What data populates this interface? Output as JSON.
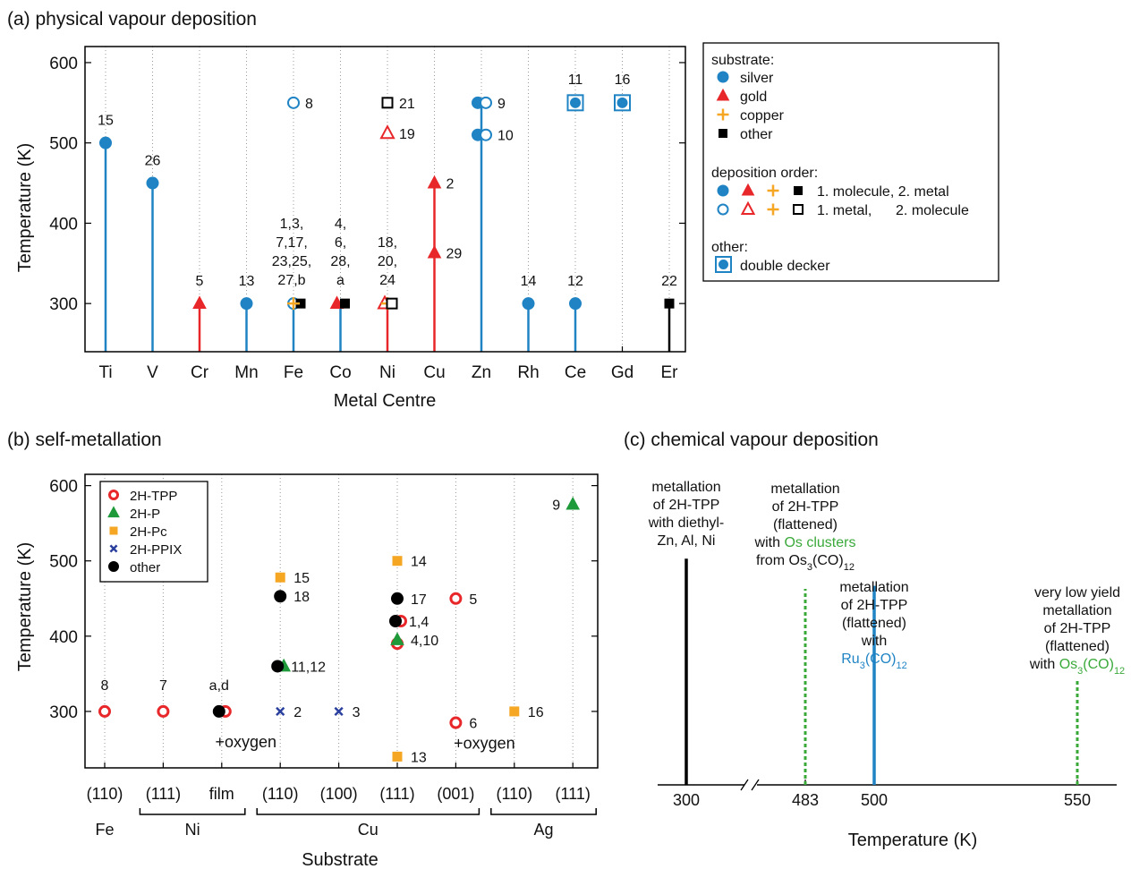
{
  "colors": {
    "silver": "#1f83c4",
    "gold": "#e8272a",
    "copper": "#f5a623",
    "other": "#000000",
    "pc": "#f5a623",
    "p": "#1f9a3a",
    "ppix": "#2b3f9e",
    "cvd_black": "#000000",
    "cvd_green": "#3aa93a",
    "cvd_blue": "#1f83c4",
    "axis": "#000000"
  },
  "chart_data": [
    {
      "panel": "a",
      "type": "scatter",
      "title": "(a) physical vapour deposition",
      "xlabel": "Metal Centre",
      "ylabel": "Temperature (K)",
      "ylim": [
        240,
        620
      ],
      "yticks": [
        300,
        400,
        500,
        600
      ],
      "categories": [
        "Ti",
        "V",
        "Cr",
        "Mn",
        "Fe",
        "Co",
        "Ni",
        "Cu",
        "Zn",
        "Rh",
        "Ce",
        "Gd",
        "Er"
      ],
      "grid": "vertical dotted",
      "stems": [
        {
          "cat": "Ti",
          "top": 500,
          "color": "silver"
        },
        {
          "cat": "V",
          "top": 450,
          "color": "silver"
        },
        {
          "cat": "Cr",
          "top": 300,
          "color": "gold"
        },
        {
          "cat": "Mn",
          "top": 300,
          "color": "silver"
        },
        {
          "cat": "Fe",
          "top": 300,
          "color": "silver"
        },
        {
          "cat": "Co",
          "top": 300,
          "color": "silver"
        },
        {
          "cat": "Ni",
          "top": 300,
          "color": "gold"
        },
        {
          "cat": "Cu",
          "top": 450,
          "color": "gold"
        },
        {
          "cat": "Zn",
          "top": 550,
          "color": "silver"
        },
        {
          "cat": "Rh",
          "top": 300,
          "color": "silver"
        },
        {
          "cat": "Ce",
          "top": 300,
          "color": "silver"
        },
        {
          "cat": "Er",
          "top": 300,
          "color": "other"
        }
      ],
      "points": [
        {
          "cat": "Ti",
          "y": 500,
          "marker": "circle",
          "fill": true,
          "substrate": "silver",
          "label": "15",
          "label_pos": "above"
        },
        {
          "cat": "V",
          "y": 450,
          "marker": "circle",
          "fill": true,
          "substrate": "silver",
          "label": "26",
          "label_pos": "above"
        },
        {
          "cat": "Cr",
          "y": 300,
          "marker": "triangle",
          "fill": true,
          "substrate": "gold",
          "label": "5",
          "label_pos": "above"
        },
        {
          "cat": "Mn",
          "y": 300,
          "marker": "circle",
          "fill": true,
          "substrate": "silver",
          "label": "13",
          "label_pos": "above"
        },
        {
          "cat": "Fe",
          "y": 300,
          "marker": "circle",
          "fill": false,
          "substrate": "silver",
          "dx": 0
        },
        {
          "cat": "Fe",
          "y": 300,
          "marker": "square",
          "fill": true,
          "substrate": "other",
          "dx": 8
        },
        {
          "cat": "Fe",
          "y": 300,
          "marker": "plus",
          "fill": true,
          "substrate": "copper",
          "dx": 0
        },
        {
          "cat": "Fe",
          "y": 550,
          "marker": "circle",
          "fill": false,
          "substrate": "silver",
          "label": "8",
          "label_pos": "right"
        },
        {
          "cat": "Co",
          "y": 300,
          "marker": "triangle",
          "fill": true,
          "substrate": "gold",
          "dx": -4
        },
        {
          "cat": "Co",
          "y": 300,
          "marker": "square",
          "fill": true,
          "substrate": "other",
          "dx": 5
        },
        {
          "cat": "Ni",
          "y": 300,
          "marker": "triangle",
          "fill": false,
          "substrate": "gold",
          "dx": -3
        },
        {
          "cat": "Ni",
          "y": 300,
          "marker": "plus",
          "fill": true,
          "substrate": "copper",
          "dx": 0
        },
        {
          "cat": "Ni",
          "y": 300,
          "marker": "square",
          "fill": false,
          "substrate": "other",
          "dx": 5
        },
        {
          "cat": "Ni",
          "y": 512,
          "marker": "triangle",
          "fill": false,
          "substrate": "gold",
          "label": "19",
          "label_pos": "right"
        },
        {
          "cat": "Ni",
          "y": 550,
          "marker": "square",
          "fill": false,
          "substrate": "other",
          "label": "21",
          "label_pos": "right"
        },
        {
          "cat": "Cu",
          "y": 363,
          "marker": "triangle",
          "fill": true,
          "substrate": "gold",
          "label": "29",
          "label_pos": "right"
        },
        {
          "cat": "Cu",
          "y": 450,
          "marker": "triangle",
          "fill": true,
          "substrate": "gold",
          "label": "2",
          "label_pos": "right"
        },
        {
          "cat": "Zn",
          "y": 510,
          "marker": "circle",
          "fill": true,
          "substrate": "silver",
          "dx": -4
        },
        {
          "cat": "Zn",
          "y": 510,
          "marker": "circle",
          "fill": false,
          "substrate": "silver",
          "dx": 5,
          "label": "10",
          "label_pos": "right"
        },
        {
          "cat": "Zn",
          "y": 550,
          "marker": "circle",
          "fill": true,
          "substrate": "silver",
          "dx": -4
        },
        {
          "cat": "Zn",
          "y": 550,
          "marker": "circle",
          "fill": false,
          "substrate": "silver",
          "dx": 5,
          "label": "9",
          "label_pos": "right"
        },
        {
          "cat": "Rh",
          "y": 300,
          "marker": "circle",
          "fill": true,
          "substrate": "silver",
          "label": "14",
          "label_pos": "above"
        },
        {
          "cat": "Ce",
          "y": 300,
          "marker": "circle",
          "fill": true,
          "substrate": "silver",
          "label": "12",
          "label_pos": "above"
        },
        {
          "cat": "Ce",
          "y": 550,
          "marker": "circle",
          "fill": true,
          "substrate": "silver",
          "double_decker": true,
          "label": "11",
          "label_pos": "above2"
        },
        {
          "cat": "Gd",
          "y": 550,
          "marker": "circle",
          "fill": true,
          "substrate": "silver",
          "double_decker": true,
          "label": "16",
          "label_pos": "above2"
        },
        {
          "cat": "Er",
          "y": 300,
          "marker": "square",
          "fill": true,
          "substrate": "other",
          "label": "22",
          "label_pos": "above"
        }
      ],
      "multiline_labels": [
        {
          "cat": "Fe",
          "lines": [
            "1,3,",
            "7,17,",
            "23,25,",
            "27,b"
          ]
        },
        {
          "cat": "Co",
          "lines": [
            "4,",
            "6,",
            "28,",
            "a"
          ]
        },
        {
          "cat": "Ni",
          "lines": [
            "18,",
            "20,",
            "24"
          ]
        }
      ],
      "legend": {
        "placement": "right",
        "substrate_title": "substrate:",
        "substrate_items": [
          {
            "label": "silver",
            "marker": "circle",
            "color": "silver"
          },
          {
            "label": "gold",
            "marker": "triangle",
            "color": "gold"
          },
          {
            "label": "copper",
            "marker": "plus",
            "color": "copper"
          },
          {
            "label": "other",
            "marker": "square",
            "color": "other"
          }
        ],
        "order_title": "deposition order:",
        "order_filled": "1. molecule, 2. metal",
        "order_open": "1. metal,      2. molecule",
        "other_title": "other:",
        "other_item": "double decker"
      }
    },
    {
      "panel": "b",
      "type": "scatter",
      "title": "(b) self-metallation",
      "xlabel": "Substrate",
      "ylabel": "Temperature (K)",
      "ylim": [
        225,
        615
      ],
      "yticks": [
        300,
        400,
        500,
        600
      ],
      "categories": [
        "(110)",
        "(111)",
        "film",
        "(110)",
        "(100)",
        "(111)",
        "(001)",
        "(110)",
        "(111)"
      ],
      "groups": [
        {
          "label": "Fe",
          "from": 0,
          "to": 0,
          "bracket": false
        },
        {
          "label": "Ni",
          "from": 1,
          "to": 2,
          "bracket": true
        },
        {
          "label": "Cu",
          "from": 3,
          "to": 6,
          "bracket": true
        },
        {
          "label": "Ag",
          "from": 7,
          "to": 8,
          "bracket": true
        }
      ],
      "grid": "vertical dotted",
      "legend": {
        "placement": "top-left",
        "items": [
          {
            "label": "2H-TPP",
            "marker": "ring",
            "color": "gold"
          },
          {
            "label": "2H-P",
            "marker": "triangle",
            "color": "p"
          },
          {
            "label": "2H-Pc",
            "marker": "square",
            "color": "pc"
          },
          {
            "label": "2H-PPIX",
            "marker": "cross",
            "color": "ppix"
          },
          {
            "label": "other",
            "marker": "circle",
            "color": "other"
          }
        ]
      },
      "points": [
        {
          "cat": 0,
          "y": 300,
          "series": "2H-TPP",
          "label": "8",
          "label_pos": "above"
        },
        {
          "cat": 1,
          "y": 300,
          "series": "2H-TPP",
          "label": "7",
          "label_pos": "above"
        },
        {
          "cat": 2,
          "y": 300,
          "series": "2H-TPP",
          "dx": 4
        },
        {
          "cat": 2,
          "y": 300,
          "series": "other",
          "dx": -3,
          "label": "a,d",
          "label_pos": "above"
        },
        {
          "cat": 3,
          "y": 478,
          "series": "2H-Pc",
          "label": "15",
          "label_pos": "right"
        },
        {
          "cat": 3,
          "y": 453,
          "series": "other",
          "label": "18",
          "label_pos": "right"
        },
        {
          "cat": 3,
          "y": 360,
          "series": "2H-P",
          "dx": 4
        },
        {
          "cat": 3,
          "y": 360,
          "series": "other",
          "dx": -3,
          "label": "11,12",
          "label_pos": "right"
        },
        {
          "cat": 3,
          "y": 300,
          "series": "2H-PPIX",
          "label": "2",
          "label_pos": "right"
        },
        {
          "cat": 4,
          "y": 300,
          "series": "2H-PPIX",
          "label": "3",
          "label_pos": "right"
        },
        {
          "cat": 5,
          "y": 500,
          "series": "2H-Pc",
          "label": "14",
          "label_pos": "right"
        },
        {
          "cat": 5,
          "y": 450,
          "series": "other",
          "label": "17",
          "label_pos": "right"
        },
        {
          "cat": 5,
          "y": 420,
          "series": "2H-TPP",
          "dx": 4
        },
        {
          "cat": 5,
          "y": 420,
          "series": "other",
          "dx": -2,
          "label": "1,4",
          "label_pos": "right"
        },
        {
          "cat": 5,
          "y": 390,
          "series": "2H-TPP"
        },
        {
          "cat": 5,
          "y": 395,
          "series": "2H-P",
          "label": "4,10",
          "label_pos": "right"
        },
        {
          "cat": 5,
          "y": 240,
          "series": "2H-Pc",
          "label": "13",
          "label_pos": "right"
        },
        {
          "cat": 6,
          "y": 450,
          "series": "2H-TPP",
          "label": "5",
          "label_pos": "right"
        },
        {
          "cat": 6,
          "y": 285,
          "series": "2H-TPP",
          "label": "6",
          "label_pos": "right"
        },
        {
          "cat": 7,
          "y": 300,
          "series": "2H-Pc",
          "label": "16",
          "label_pos": "right"
        },
        {
          "cat": 8,
          "y": 575,
          "series": "2H-P",
          "label": "9",
          "label_pos": "left"
        }
      ],
      "annotations": [
        {
          "cat": 2,
          "y": 262,
          "text": "+oxygen",
          "color": "gold"
        },
        {
          "cat": 6,
          "y": 260,
          "text": "+oxygen",
          "color": "gold"
        }
      ]
    },
    {
      "panel": "c",
      "type": "line",
      "title": "(c) chemical vapour deposition",
      "xlabel": "Temperature (K)",
      "xticks": [
        "300",
        "483",
        "500",
        "550"
      ],
      "axis_break": true,
      "lines": [
        {
          "x": 300,
          "height": 0.75,
          "color": "cvd_black",
          "dashed": false
        },
        {
          "x": 483,
          "height": 0.65,
          "color": "cvd_green",
          "dashed": true
        },
        {
          "x": 500,
          "height": 0.66,
          "color": "cvd_blue",
          "dashed": false
        },
        {
          "x": 550,
          "height": 0.35,
          "color": "cvd_green",
          "dashed": true
        }
      ],
      "annotations": [
        {
          "x": 300,
          "lines": [
            {
              "t": "metallation"
            },
            {
              "t": "of 2H-TPP"
            },
            {
              "t": "with diethyl-"
            },
            {
              "t": "Zn, Al, Ni"
            }
          ]
        },
        {
          "x": 483,
          "lines": [
            {
              "t": "metallation"
            },
            {
              "t": "of 2H-TPP"
            },
            {
              "t": "(flattened)"
            },
            {
              "t": "with ",
              "green": "Os clusters"
            },
            {
              "t": "from Os",
              "sub": "3",
              "t2": "(CO)",
              "sub2": "12"
            }
          ]
        },
        {
          "x": 500,
          "lines": [
            {
              "t": "metallation"
            },
            {
              "t": "of 2H-TPP"
            },
            {
              "t": "(flattened)"
            },
            {
              "t": "with"
            },
            {
              "blue": "Ru",
              "sub": "3",
              "t2": "(CO)",
              "sub2": "12"
            }
          ]
        },
        {
          "x": 550,
          "lines": [
            {
              "t": "very low yield"
            },
            {
              "t": "metallation"
            },
            {
              "t": "of 2H-TPP"
            },
            {
              "t": "(flattened)"
            },
            {
              "t": "with ",
              "green": "Os",
              "sub": "3",
              "t2": "(CO)",
              "sub2": "12"
            }
          ]
        }
      ]
    }
  ]
}
